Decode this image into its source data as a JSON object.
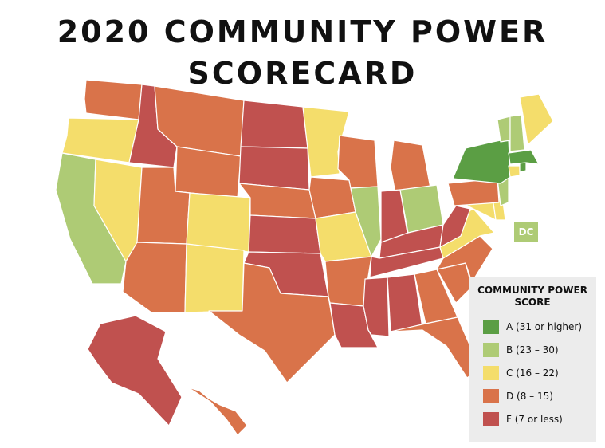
{
  "title": "2020 COMMUNITY POWER SCORECARD",
  "colors": {
    "A": "#5b9e44",
    "B": "#aecb75",
    "C": "#f4dd6b",
    "D": "#d9734a",
    "F": "#c0514f"
  },
  "dc_label": "DC",
  "dc_grade": "B",
  "legend": {
    "title": "COMMUNITY POWER SCORE",
    "items": [
      {
        "grade": "A",
        "label": "A (31 or higher)"
      },
      {
        "grade": "B",
        "label": "B (23 – 30)"
      },
      {
        "grade": "C",
        "label": "C (16 – 22)"
      },
      {
        "grade": "D",
        "label": "D (8 – 15)"
      },
      {
        "grade": "F",
        "label": "F (7 or less)"
      }
    ]
  },
  "state_grades": {
    "WA": "D",
    "OR": "C",
    "CA": "B",
    "NV": "C",
    "ID": "F",
    "MT": "D",
    "WY": "D",
    "UT": "D",
    "AZ": "D",
    "CO": "C",
    "NM": "C",
    "ND": "F",
    "SD": "F",
    "NE": "D",
    "KS": "F",
    "OK": "F",
    "TX": "D",
    "MN": "C",
    "IA": "D",
    "MO": "C",
    "AR": "D",
    "LA": "F",
    "WI": "D",
    "IL": "B",
    "MI": "D",
    "IN": "F",
    "OH": "B",
    "KY": "F",
    "TN": "F",
    "MS": "F",
    "AL": "F",
    "GA": "D",
    "FL": "D",
    "SC": "D",
    "NC": "D",
    "VA": "C",
    "WV": "F",
    "MD": "C",
    "DE": "C",
    "PA": "D",
    "NJ": "B",
    "NY": "A",
    "CT": "C",
    "RI": "A",
    "MA": "A",
    "VT": "B",
    "NH": "B",
    "ME": "C",
    "AK": "F",
    "HI": "D"
  }
}
